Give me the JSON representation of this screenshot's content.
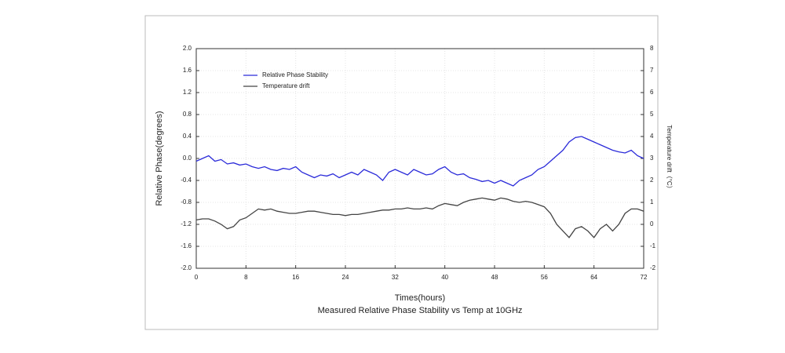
{
  "chart_data": {
    "type": "line",
    "caption": "Measured Relative Phase Stability vs Temp at 10GHz",
    "xlabel": "Times(hours)",
    "ylabel": "Relative Phase(degrees)",
    "y2label": "Temperature drift（°C）",
    "x": [
      0,
      1,
      2,
      3,
      4,
      5,
      6,
      7,
      8,
      9,
      10,
      11,
      12,
      13,
      14,
      15,
      16,
      17,
      18,
      19,
      20,
      21,
      22,
      23,
      24,
      25,
      26,
      27,
      28,
      29,
      30,
      31,
      32,
      33,
      34,
      35,
      36,
      37,
      38,
      39,
      40,
      41,
      42,
      43,
      44,
      45,
      46,
      47,
      48,
      49,
      50,
      51,
      52,
      53,
      54,
      55,
      56,
      57,
      58,
      59,
      60,
      61,
      62,
      63,
      64,
      65,
      66,
      67,
      68,
      69,
      70,
      71,
      72
    ],
    "series": [
      {
        "name": "Relative Phase Stability",
        "color": "#2b2bd9",
        "axis": "y",
        "values": [
          -0.05,
          0.0,
          0.05,
          -0.05,
          -0.02,
          -0.1,
          -0.08,
          -0.12,
          -0.1,
          -0.15,
          -0.18,
          -0.15,
          -0.2,
          -0.22,
          -0.18,
          -0.2,
          -0.15,
          -0.25,
          -0.3,
          -0.35,
          -0.3,
          -0.32,
          -0.28,
          -0.35,
          -0.3,
          -0.25,
          -0.3,
          -0.2,
          -0.25,
          -0.3,
          -0.4,
          -0.25,
          -0.2,
          -0.25,
          -0.3,
          -0.2,
          -0.25,
          -0.3,
          -0.28,
          -0.2,
          -0.15,
          -0.25,
          -0.3,
          -0.28,
          -0.35,
          -0.38,
          -0.42,
          -0.4,
          -0.45,
          -0.4,
          -0.45,
          -0.5,
          -0.4,
          -0.35,
          -0.3,
          -0.2,
          -0.15,
          -0.05,
          0.05,
          0.15,
          0.3,
          0.38,
          0.4,
          0.35,
          0.3,
          0.25,
          0.2,
          0.15,
          0.12,
          0.1,
          0.15,
          0.05,
          0.0
        ]
      },
      {
        "name": "Temperature drift",
        "color": "#444444",
        "axis": "y2",
        "values": [
          0.2,
          0.25,
          0.25,
          0.15,
          0.0,
          -0.2,
          -0.1,
          0.2,
          0.3,
          0.5,
          0.7,
          0.65,
          0.7,
          0.6,
          0.55,
          0.5,
          0.5,
          0.55,
          0.6,
          0.6,
          0.55,
          0.5,
          0.45,
          0.45,
          0.4,
          0.45,
          0.45,
          0.5,
          0.55,
          0.6,
          0.65,
          0.65,
          0.7,
          0.7,
          0.75,
          0.7,
          0.7,
          0.75,
          0.7,
          0.85,
          0.95,
          0.9,
          0.85,
          1.0,
          1.1,
          1.15,
          1.2,
          1.15,
          1.1,
          1.2,
          1.15,
          1.05,
          1.0,
          1.05,
          1.0,
          0.9,
          0.8,
          0.5,
          0.0,
          -0.3,
          -0.6,
          -0.2,
          -0.1,
          -0.3,
          -0.6,
          -0.2,
          0.0,
          -0.3,
          0.0,
          0.5,
          0.7,
          0.7,
          0.6
        ]
      }
    ],
    "xlim": [
      0,
      72
    ],
    "xticks": [
      0,
      8,
      16,
      24,
      32,
      40,
      48,
      56,
      64,
      72
    ],
    "ylim": [
      -2,
      2
    ],
    "yticks": [
      {
        "value": -2,
        "label": "-2.0"
      },
      -1.6,
      -1.2,
      -0.8,
      -0.4,
      {
        "value": 0,
        "label": "0.0"
      },
      0.4,
      0.8,
      1.2,
      1.6,
      {
        "value": 2,
        "label": "2.0"
      }
    ],
    "y2lim": [
      -2,
      8
    ],
    "y2ticks": [
      -2,
      -1,
      0,
      1,
      2,
      3,
      4,
      5,
      6,
      7,
      8
    ],
    "grid": true,
    "legend": "upper left"
  }
}
